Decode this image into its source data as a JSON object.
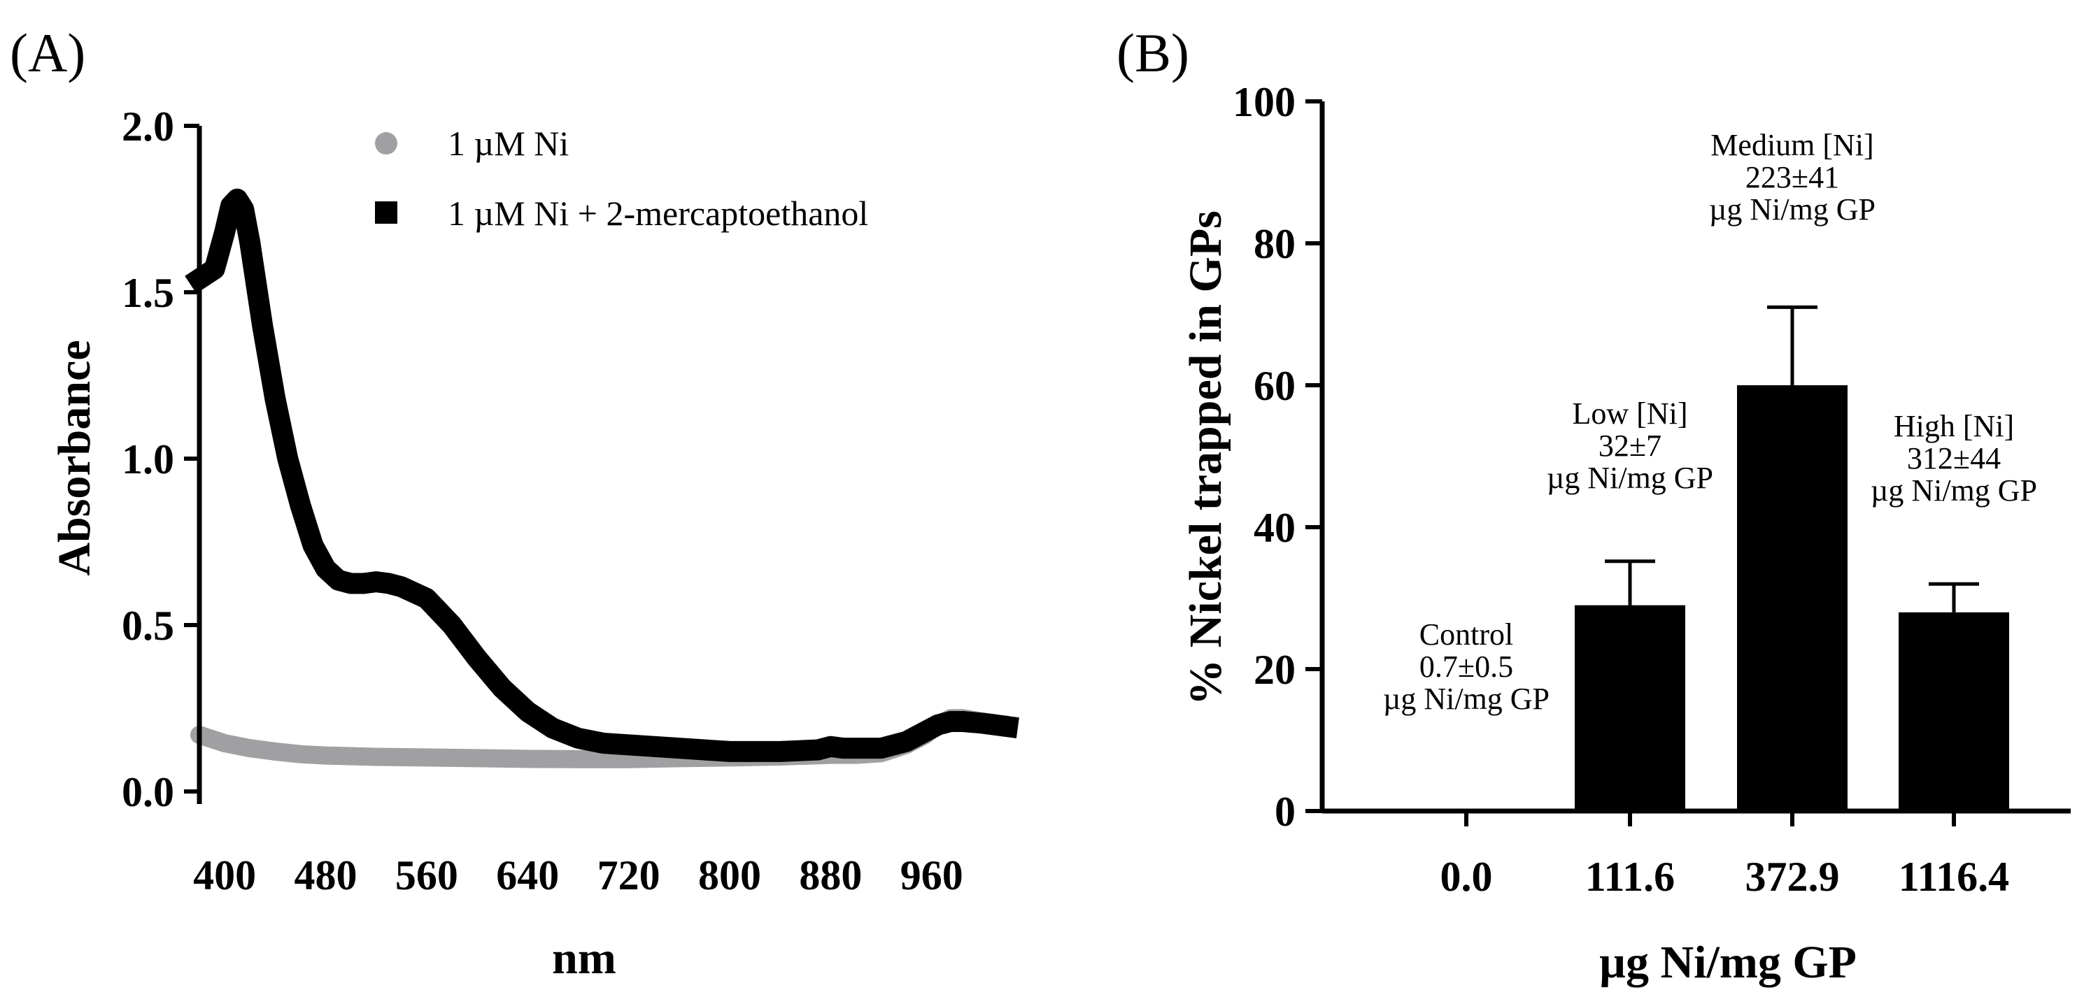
{
  "colors": {
    "ink": "#000000",
    "series_ni": "#a0a0a3",
    "series_ni_me": "#000000",
    "bar": "#000000"
  },
  "chart_data": [
    {
      "panel": "(A)",
      "type": "line",
      "xlabel": "nm",
      "ylabel": "Absorbance",
      "xlim": [
        380,
        1020
      ],
      "ylim": [
        0,
        2.0
      ],
      "xticks": [
        400,
        480,
        560,
        640,
        720,
        800,
        880,
        960
      ],
      "yticks": [
        0.0,
        0.5,
        1.0,
        1.5,
        2.0
      ],
      "ytick_labels": [
        "0.0",
        "0.5",
        "1.0",
        "1.5",
        "2.0"
      ],
      "legend_position": "top-right",
      "series": [
        {
          "name": "1 µM Ni",
          "marker": "circle",
          "color": "#a0a0a3",
          "x": [
            380,
            400,
            420,
            440,
            460,
            480,
            520,
            560,
            600,
            640,
            680,
            720,
            760,
            800,
            840,
            880,
            900,
            920,
            940,
            955,
            965,
            975,
            985,
            1000,
            1020
          ],
          "y": [
            0.17,
            0.145,
            0.13,
            0.12,
            0.112,
            0.108,
            0.104,
            0.102,
            0.1,
            0.098,
            0.097,
            0.097,
            0.1,
            0.102,
            0.105,
            0.11,
            0.11,
            0.115,
            0.14,
            0.17,
            0.2,
            0.22,
            0.22,
            0.21,
            0.2
          ]
        },
        {
          "name": "1 µM Ni + 2-mercaptoethanol",
          "marker": "square",
          "color": "#000000",
          "x": [
            380,
            392,
            400,
            405,
            410,
            415,
            420,
            430,
            440,
            450,
            460,
            470,
            480,
            490,
            500,
            510,
            520,
            530,
            540,
            560,
            580,
            600,
            620,
            640,
            660,
            680,
            700,
            720,
            760,
            800,
            840,
            870,
            880,
            890,
            920,
            940,
            955,
            965,
            975,
            985,
            1000,
            1020
          ],
          "y": [
            1.54,
            1.57,
            1.68,
            1.76,
            1.78,
            1.75,
            1.65,
            1.4,
            1.18,
            1.0,
            0.86,
            0.74,
            0.67,
            0.635,
            0.625,
            0.625,
            0.63,
            0.625,
            0.615,
            0.58,
            0.5,
            0.4,
            0.31,
            0.24,
            0.19,
            0.16,
            0.145,
            0.14,
            0.13,
            0.12,
            0.12,
            0.125,
            0.135,
            0.13,
            0.13,
            0.15,
            0.18,
            0.2,
            0.21,
            0.21,
            0.205,
            0.195
          ]
        }
      ]
    },
    {
      "panel": "(B)",
      "type": "bar",
      "xlabel": "µg Ni/mg GP",
      "ylabel": "% Nickel trapped in GPs",
      "ylim": [
        0,
        100
      ],
      "yticks": [
        0,
        20,
        40,
        60,
        80,
        100
      ],
      "categories": [
        "0.0",
        "111.6",
        "372.9",
        "1116.4"
      ],
      "values": [
        0,
        29,
        60,
        28
      ],
      "errors": [
        0,
        6.2,
        11,
        4
      ],
      "annotations": [
        [
          "Control",
          "0.7±0.5",
          "µg Ni/mg GP"
        ],
        [
          "Low [Ni]",
          "32±7",
          "µg Ni/mg GP"
        ],
        [
          "Medium [Ni]",
          "223±41",
          "µg Ni/mg GP"
        ],
        [
          "High [Ni]",
          "312±44",
          "µg Ni/mg GP"
        ]
      ]
    }
  ]
}
